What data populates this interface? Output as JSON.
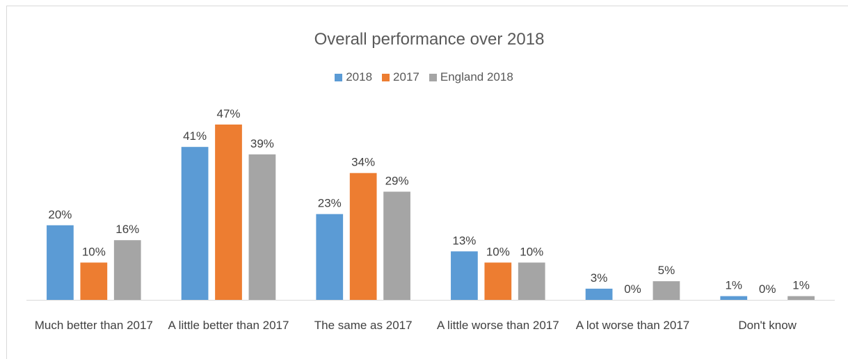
{
  "chart_data": {
    "type": "bar",
    "title": "Overall performance over 2018",
    "categories": [
      "Much better than 2017",
      "A little better than 2017",
      "The same as 2017",
      "A little worse than 2017",
      "A lot worse than 2017",
      "Don't know"
    ],
    "series": [
      {
        "name": "2018",
        "color": "#5b9bd5",
        "values": [
          20,
          41,
          23,
          13,
          3,
          1
        ],
        "value_labels": [
          "20%",
          "41%",
          "23%",
          "13%",
          "3%",
          "1%"
        ]
      },
      {
        "name": "2017",
        "color": "#ed7d31",
        "values": [
          10,
          47,
          34,
          10,
          0,
          0
        ],
        "value_labels": [
          "10%",
          "47%",
          "34%",
          "10%",
          "0%",
          "0%"
        ]
      },
      {
        "name": "England 2018",
        "color": "#a5a5a5",
        "values": [
          16,
          39,
          29,
          10,
          5,
          1
        ],
        "value_labels": [
          "16%",
          "39%",
          "29%",
          "10%",
          "5%",
          "1%"
        ]
      }
    ],
    "legend": "top"
  }
}
